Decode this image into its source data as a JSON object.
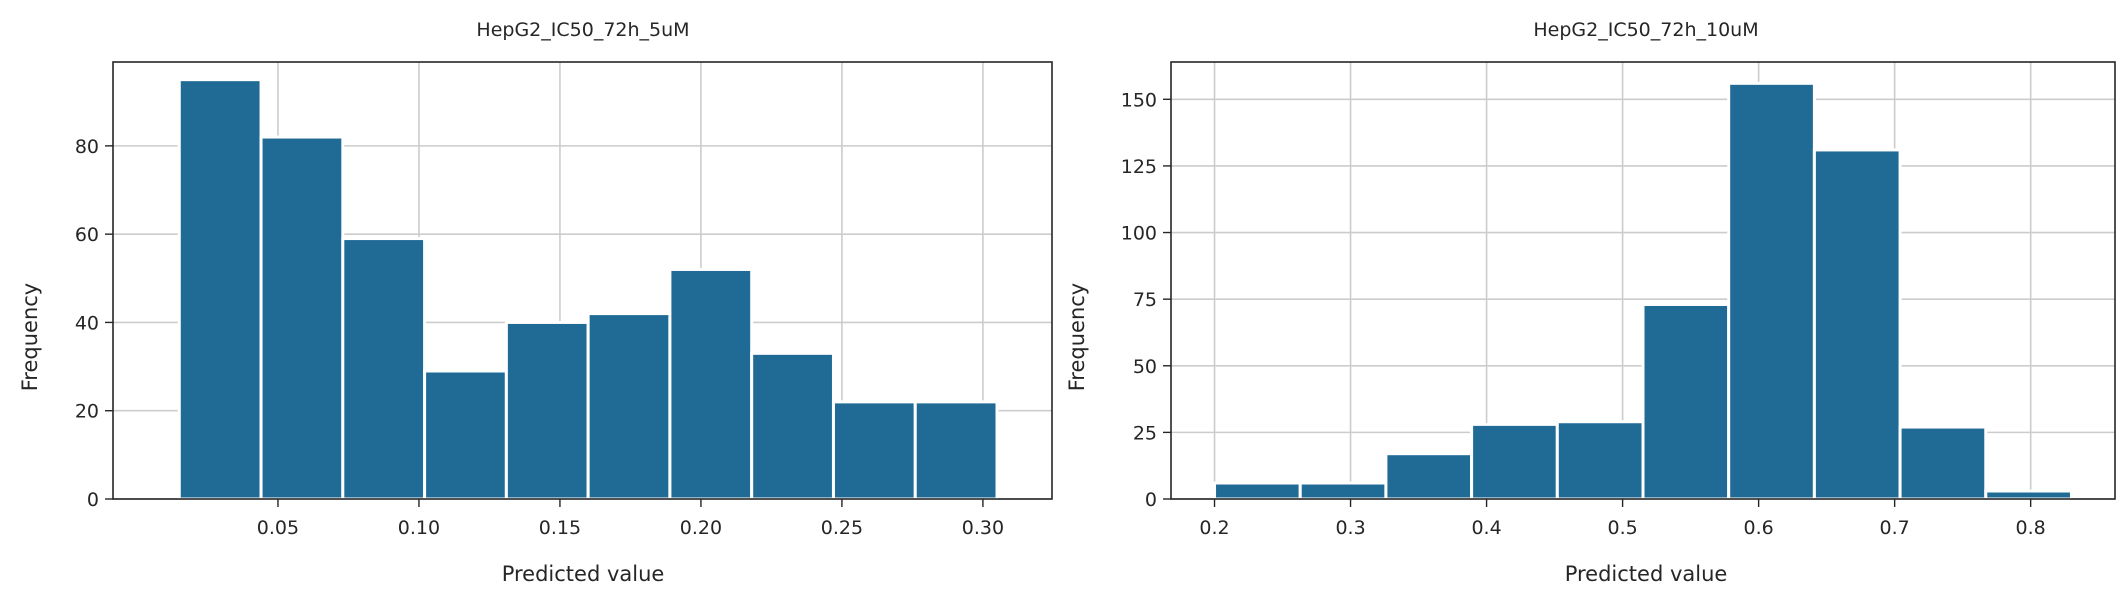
{
  "colors": {
    "bar": "#1f6b96",
    "grid": "#cccccc",
    "axis": "#262626"
  },
  "chart_data": [
    {
      "type": "bar",
      "title": "HepG2_IC50_72h_5uM",
      "xlabel": "Predicted value",
      "ylabel": "Frequency",
      "xlim": [
        -0.0085,
        0.3245
      ],
      "ylim": [
        0,
        99
      ],
      "xticks": [
        "0.05",
        "0.10",
        "0.15",
        "0.20",
        "0.25",
        "0.30"
      ],
      "xtick_values": [
        0.05,
        0.1,
        0.15,
        0.2,
        0.25,
        0.3
      ],
      "yticks": [
        "0",
        "20",
        "40",
        "60",
        "80"
      ],
      "ytick_values": [
        0,
        20,
        40,
        60,
        80
      ],
      "bin_edges": [
        0.015,
        0.044,
        0.073,
        0.102,
        0.131,
        0.16,
        0.189,
        0.218,
        0.247,
        0.276,
        0.305
      ],
      "values": [
        95,
        82,
        59,
        29,
        40,
        42,
        52,
        33,
        22,
        22
      ],
      "grid": true,
      "legend": "none"
    },
    {
      "type": "bar",
      "title": "HepG2_IC50_72h_10uM",
      "xlabel": "Predicted value",
      "ylabel": "Frequency",
      "xlim": [
        0.168,
        0.862
      ],
      "ylim": [
        0,
        164
      ],
      "xticks": [
        "0.2",
        "0.3",
        "0.4",
        "0.5",
        "0.6",
        "0.7",
        "0.8"
      ],
      "xtick_values": [
        0.2,
        0.3,
        0.4,
        0.5,
        0.6,
        0.7,
        0.8
      ],
      "yticks": [
        "0",
        "25",
        "50",
        "75",
        "100",
        "125",
        "150"
      ],
      "ytick_values": [
        0,
        25,
        50,
        75,
        100,
        125,
        150
      ],
      "bin_edges": [
        0.2,
        0.263,
        0.326,
        0.389,
        0.452,
        0.515,
        0.578,
        0.641,
        0.704,
        0.767,
        0.83
      ],
      "values": [
        6,
        6,
        17,
        28,
        29,
        73,
        156,
        131,
        27,
        3
      ],
      "grid": true,
      "legend": "none"
    }
  ]
}
